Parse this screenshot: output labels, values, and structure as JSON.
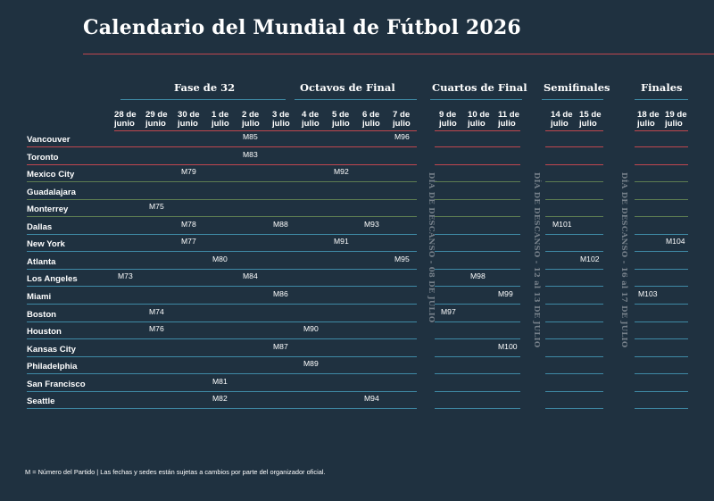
{
  "title": "Calendario del Mundial de Fútbol 2026",
  "colors": {
    "background": "#1f3140",
    "accent_red": "#c0474f",
    "accent_blue": "#3f8aa6",
    "green": "#5e7d52",
    "rest_text": "#76808a"
  },
  "phases": [
    {
      "label": "Fase de 32"
    },
    {
      "label": "Octavos de Final"
    },
    {
      "label": "Cuartos de Final"
    },
    {
      "label": "Semifinales"
    },
    {
      "label": "Finales"
    }
  ],
  "dates": [
    {
      "day": "28 de",
      "month": "junio"
    },
    {
      "day": "29 de",
      "month": "junio"
    },
    {
      "day": "30 de",
      "month": "junio"
    },
    {
      "day": "1 de",
      "month": "julio"
    },
    {
      "day": "2 de",
      "month": "julio"
    },
    {
      "day": "3 de",
      "month": "julio"
    },
    {
      "day": "4 de",
      "month": "julio"
    },
    {
      "day": "5 de",
      "month": "julio"
    },
    {
      "day": "6 de",
      "month": "julio"
    },
    {
      "day": "7 de",
      "month": "julio"
    },
    {
      "day": "9 de",
      "month": "julio"
    },
    {
      "day": "10 de",
      "month": "julio"
    },
    {
      "day": "11 de",
      "month": "julio"
    },
    {
      "day": "14 de",
      "month": "julio"
    },
    {
      "day": "15 de",
      "month": "julio"
    },
    {
      "day": "18 de",
      "month": "julio"
    },
    {
      "day": "19 de",
      "month": "julio"
    }
  ],
  "cities": [
    "Vancouver",
    "Toronto",
    "Mexico City",
    "Guadalajara",
    "Monterrey",
    "Dallas",
    "New York",
    "Atlanta",
    "Los Angeles",
    "Miami",
    "Boston",
    "Houston",
    "Kansas City",
    "Philadelphia",
    "San Francisco",
    "Seattle"
  ],
  "matches": [
    {
      "id": "M85",
      "city": 0,
      "date": 4
    },
    {
      "id": "M96",
      "city": 0,
      "date": 9
    },
    {
      "id": "M83",
      "city": 1,
      "date": 4
    },
    {
      "id": "M79",
      "city": 2,
      "date": 2
    },
    {
      "id": "M92",
      "city": 2,
      "date": 7
    },
    {
      "id": "M75",
      "city": 4,
      "date": 1
    },
    {
      "id": "M78",
      "city": 5,
      "date": 2
    },
    {
      "id": "M88",
      "city": 5,
      "date": 5
    },
    {
      "id": "M93",
      "city": 5,
      "date": 8
    },
    {
      "id": "M101",
      "city": 5,
      "date": 13
    },
    {
      "id": "M77",
      "city": 6,
      "date": 2
    },
    {
      "id": "M91",
      "city": 6,
      "date": 7
    },
    {
      "id": "M104",
      "city": 6,
      "date": 16
    },
    {
      "id": "M80",
      "city": 7,
      "date": 3
    },
    {
      "id": "M95",
      "city": 7,
      "date": 9
    },
    {
      "id": "M102",
      "city": 7,
      "date": 14
    },
    {
      "id": "M73",
      "city": 8,
      "date": 0
    },
    {
      "id": "M84",
      "city": 8,
      "date": 4
    },
    {
      "id": "M98",
      "city": 8,
      "date": 11
    },
    {
      "id": "M86",
      "city": 9,
      "date": 5
    },
    {
      "id": "M99",
      "city": 9,
      "date": 12
    },
    {
      "id": "M103",
      "city": 9,
      "date": 15
    },
    {
      "id": "M74",
      "city": 10,
      "date": 1
    },
    {
      "id": "M97",
      "city": 10,
      "date": 10
    },
    {
      "id": "M76",
      "city": 11,
      "date": 1
    },
    {
      "id": "M90",
      "city": 11,
      "date": 6
    },
    {
      "id": "M87",
      "city": 12,
      "date": 5
    },
    {
      "id": "M100",
      "city": 12,
      "date": 12
    },
    {
      "id": "M89",
      "city": 13,
      "date": 6
    },
    {
      "id": "M81",
      "city": 14,
      "date": 3
    },
    {
      "id": "M82",
      "city": 15,
      "date": 3
    },
    {
      "id": "M94",
      "city": 15,
      "date": 8
    }
  ],
  "rest_days": [
    "DÍA DE DESCANSO - 08 DE JULIO",
    "DÍA DE DESCANSO - 12 al 13 DE JULIO",
    "DÍA DE DESCANSO - 16 al 17 DE JULIO"
  ],
  "footnote": "M = Número del Partido | Las fechas y sedes están sujetas a cambios por parte del organizador oficial."
}
